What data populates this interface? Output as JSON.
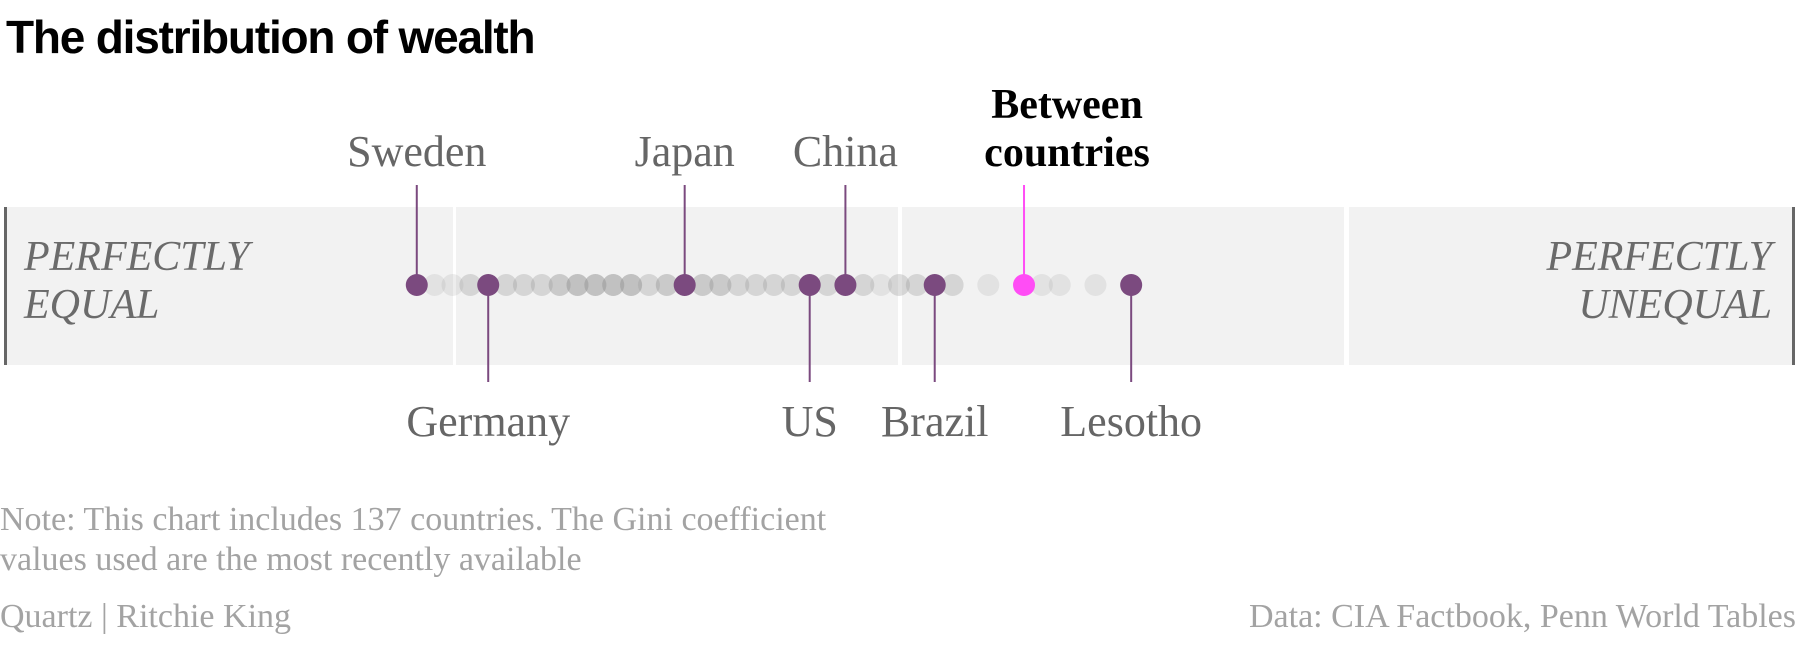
{
  "chart_data": {
    "type": "scatter",
    "title": "The distribution of wealth",
    "x_axis": {
      "min_label": "PERFECTLY EQUAL",
      "max_label": "PERFECTLY UNEQUAL",
      "range": [
        0,
        1
      ]
    },
    "labeled_points": [
      {
        "name": "Sweden",
        "x": 0.23,
        "position": "above"
      },
      {
        "name": "Germany",
        "x": 0.27,
        "position": "below"
      },
      {
        "name": "Japan",
        "x": 0.38,
        "position": "above"
      },
      {
        "name": "US",
        "x": 0.45,
        "position": "below"
      },
      {
        "name": "China",
        "x": 0.47,
        "position": "above"
      },
      {
        "name": "Brazil",
        "x": 0.52,
        "position": "below"
      },
      {
        "name": "Lesotho",
        "x": 0.63,
        "position": "below"
      }
    ],
    "highlight": {
      "label_line1": "Between",
      "label_line2": "countries",
      "x": 0.57,
      "color": "#ff4df5"
    },
    "background_points_x": [
      0.24,
      0.25,
      0.26,
      0.26,
      0.27,
      0.28,
      0.28,
      0.29,
      0.29,
      0.3,
      0.3,
      0.31,
      0.31,
      0.31,
      0.32,
      0.32,
      0.32,
      0.32,
      0.33,
      0.33,
      0.33,
      0.33,
      0.34,
      0.34,
      0.34,
      0.34,
      0.35,
      0.35,
      0.35,
      0.35,
      0.36,
      0.36,
      0.37,
      0.37,
      0.37,
      0.38,
      0.38,
      0.39,
      0.39,
      0.39,
      0.4,
      0.4,
      0.4,
      0.41,
      0.41,
      0.42,
      0.42,
      0.43,
      0.43,
      0.44,
      0.44,
      0.45,
      0.45,
      0.46,
      0.46,
      0.47,
      0.48,
      0.48,
      0.49,
      0.5,
      0.5,
      0.51,
      0.51,
      0.52,
      0.53,
      0.53,
      0.55,
      0.58,
      0.59,
      0.61,
      0.63
    ],
    "point_color": "#7b4a7f",
    "background_color": "#9a9a9a",
    "band_color": "#f2f2f2"
  },
  "note": "Note: This chart includes 137 countries. The Gini coefficient values used are the most recently available",
  "credit": "Quartz | Ritchie King",
  "source": "Data: CIA Factbook, Penn World Tables"
}
